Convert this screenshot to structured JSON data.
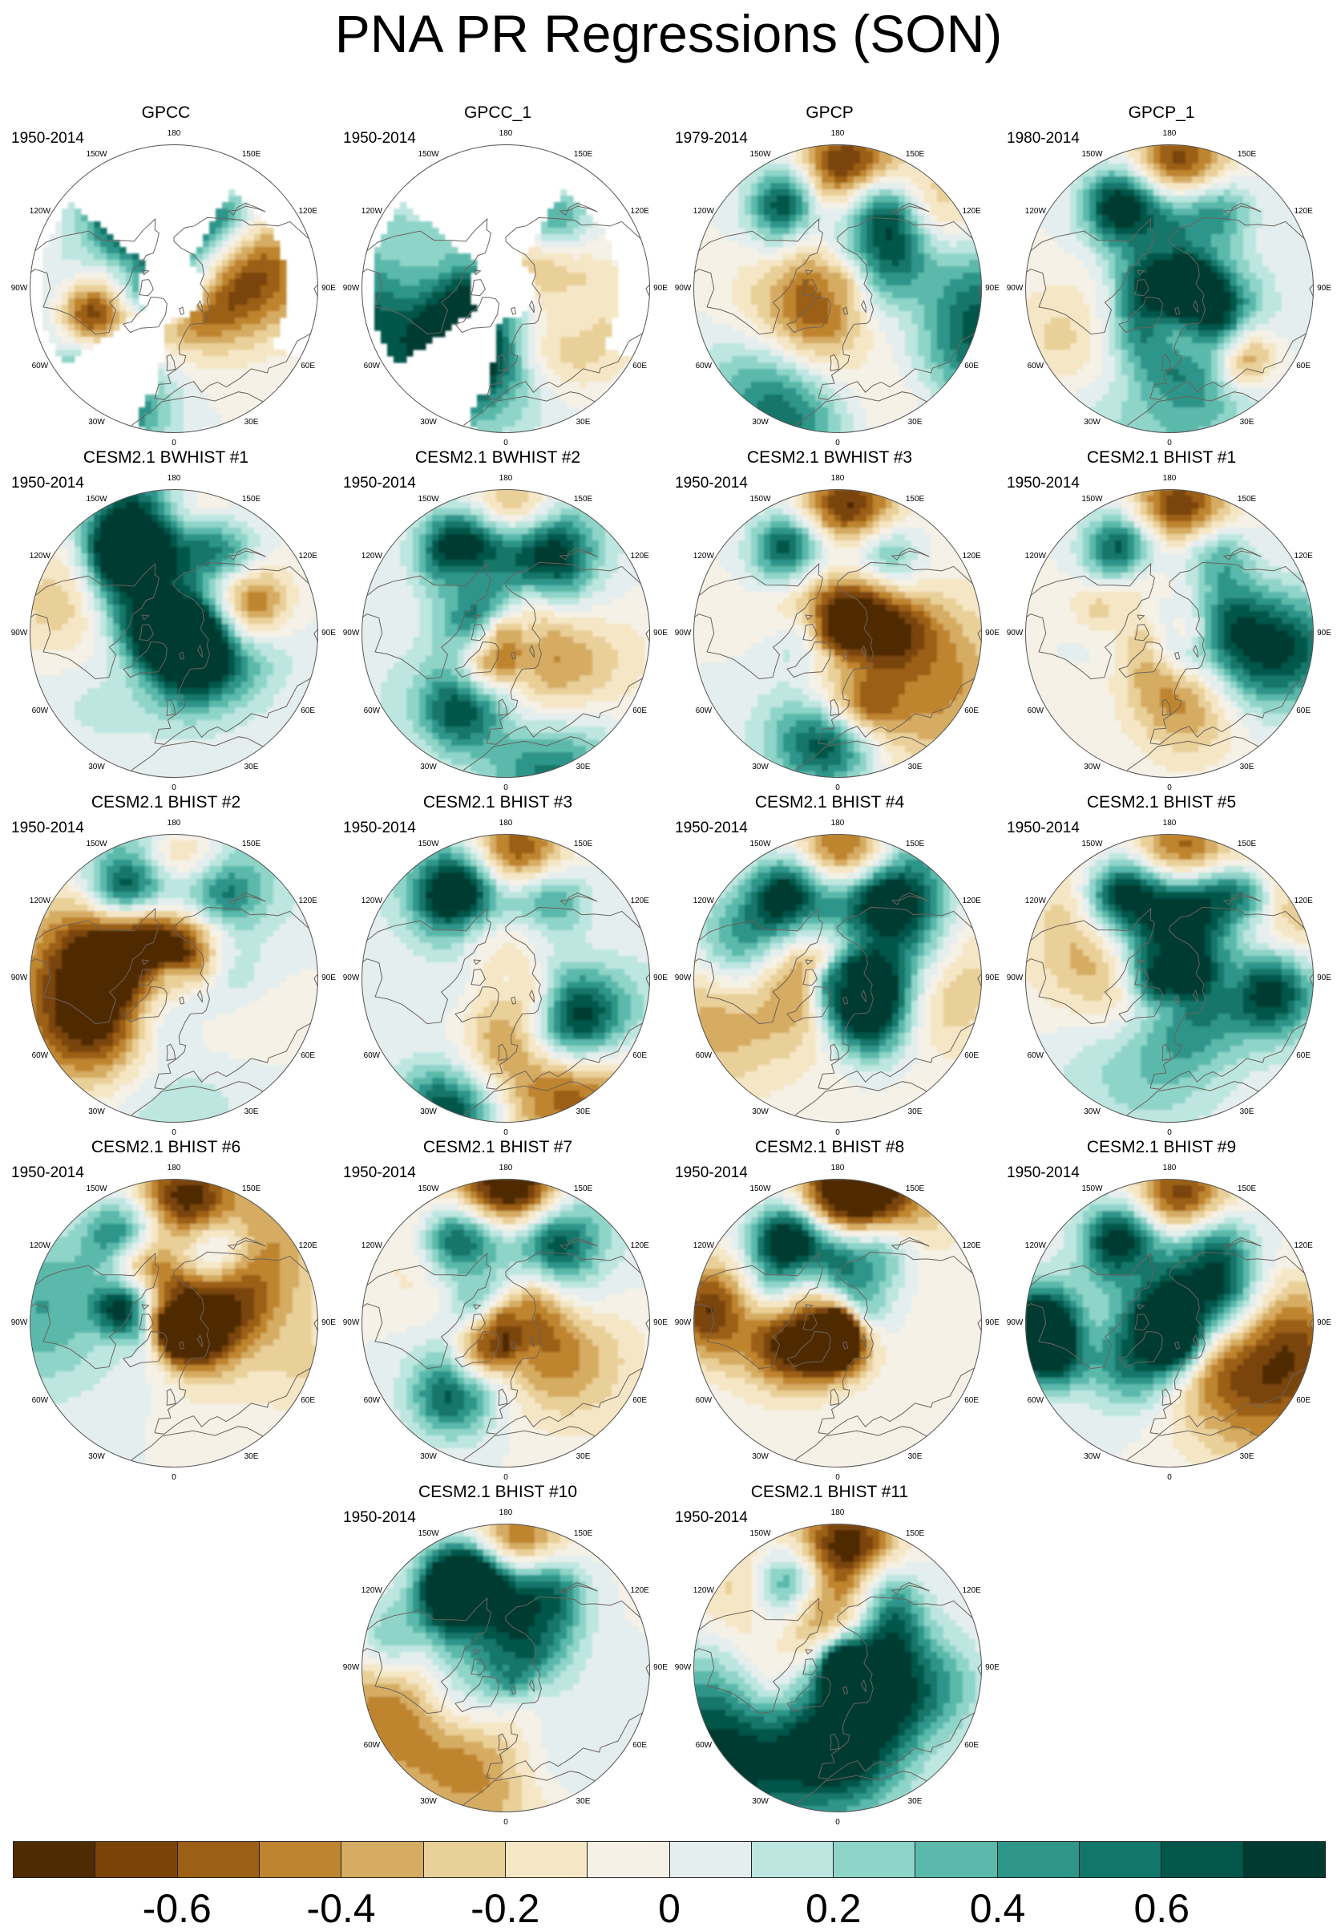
{
  "title": "PNA PR Regressions (SON)",
  "panels": [
    {
      "title": "GPCC",
      "period": "1950-2014",
      "mask": true,
      "seed": 1
    },
    {
      "title": "GPCC_1",
      "period": "1950-2014",
      "mask": true,
      "seed": 2
    },
    {
      "title": "GPCP",
      "period": "1979-2014",
      "mask": false,
      "seed": 3
    },
    {
      "title": "GPCP_1",
      "period": "1980-2014",
      "mask": false,
      "seed": 4
    },
    {
      "title": "CESM2.1 BWHIST #1",
      "period": "1950-2014",
      "mask": false,
      "seed": 5
    },
    {
      "title": "CESM2.1 BWHIST #2",
      "period": "1950-2014",
      "mask": false,
      "seed": 6
    },
    {
      "title": "CESM2.1 BWHIST #3",
      "period": "1950-2014",
      "mask": false,
      "seed": 7
    },
    {
      "title": "CESM2.1 BHIST #1",
      "period": "1950-2014",
      "mask": false,
      "seed": 8
    },
    {
      "title": "CESM2.1 BHIST #2",
      "period": "1950-2014",
      "mask": false,
      "seed": 9
    },
    {
      "title": "CESM2.1 BHIST #3",
      "period": "1950-2014",
      "mask": false,
      "seed": 10
    },
    {
      "title": "CESM2.1 BHIST #4",
      "period": "1950-2014",
      "mask": false,
      "seed": 11
    },
    {
      "title": "CESM2.1 BHIST #5",
      "period": "1950-2014",
      "mask": false,
      "seed": 12
    },
    {
      "title": "CESM2.1 BHIST #6",
      "period": "1950-2014",
      "mask": false,
      "seed": 13
    },
    {
      "title": "CESM2.1 BHIST #7",
      "period": "1950-2014",
      "mask": false,
      "seed": 14
    },
    {
      "title": "CESM2.1 BHIST #8",
      "period": "1950-2014",
      "mask": false,
      "seed": 15
    },
    {
      "title": "CESM2.1 BHIST #9",
      "period": "1950-2014",
      "mask": false,
      "seed": 16
    },
    {
      "title": "CESM2.1 BHIST #10",
      "period": "1950-2014",
      "mask": false,
      "seed": 17
    },
    {
      "title": "CESM2.1 BHIST #11",
      "period": "1950-2014",
      "mask": false,
      "seed": 18
    }
  ],
  "lon_labels": [
    "180",
    "150E",
    "120E",
    "90E",
    "60E",
    "30E",
    "0",
    "30W",
    "60W",
    "90W",
    "120W",
    "150W"
  ],
  "colorbar": {
    "colors": [
      "#4f2b04",
      "#7a4409",
      "#9b5f16",
      "#bf842f",
      "#d5ac62",
      "#e9cf98",
      "#f5e6c5",
      "#f5f1e6",
      "#e4eeee",
      "#bde6e0",
      "#8fd4c9",
      "#5ab9ab",
      "#2d958a",
      "#12766b",
      "#02574a",
      "#013a30"
    ],
    "ticks": [
      "-0.6",
      "-0.4",
      "-0.2",
      "0",
      "0.2",
      "0.4",
      "0.6"
    ]
  }
}
